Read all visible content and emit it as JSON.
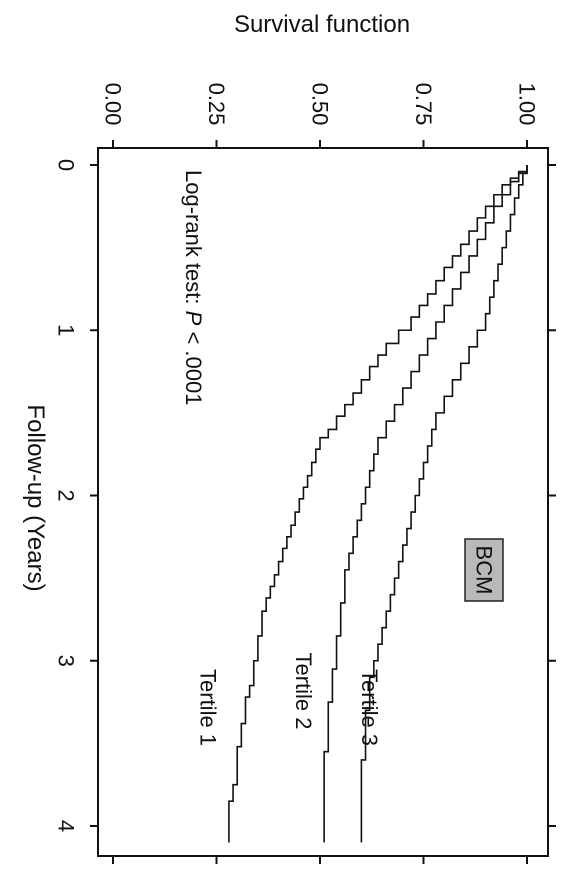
{
  "chart_data": {
    "type": "line",
    "step": true,
    "orientation": "rotated-90-clockwise",
    "xlabel": "Follow-up (Years)",
    "ylabel": "Survival function",
    "xlim": [
      0,
      4.2
    ],
    "ylim": [
      0,
      1
    ],
    "x_ticks": [
      "0",
      "1",
      "2",
      "3",
      "4"
    ],
    "y_ticks": [
      "0.00",
      "0.25",
      "0.50",
      "0.75",
      "1.00"
    ],
    "badge": "BCM",
    "annotation": {
      "prefix": "Log-rank test: ",
      "italic": "P",
      "suffix": " < .0001"
    },
    "series": [
      {
        "name": "Tertile 1",
        "color": "#111111",
        "x": [
          0,
          0.04,
          0.08,
          0.12,
          0.18,
          0.25,
          0.32,
          0.4,
          0.48,
          0.55,
          0.62,
          0.7,
          0.78,
          0.85,
          0.92,
          1.0,
          1.08,
          1.15,
          1.22,
          1.3,
          1.38,
          1.45,
          1.52,
          1.6,
          1.65,
          1.72,
          1.8,
          1.88,
          1.95,
          2.02,
          2.1,
          2.18,
          2.25,
          2.32,
          2.4,
          2.48,
          2.55,
          2.62,
          2.7,
          2.78,
          2.85,
          2.92,
          3.0,
          3.08,
          3.15,
          3.22,
          3.3,
          3.38,
          3.45,
          3.52,
          3.6,
          3.68,
          3.75,
          3.85,
          4.1
        ],
        "y": [
          1.0,
          0.98,
          0.96,
          0.94,
          0.92,
          0.9,
          0.88,
          0.86,
          0.84,
          0.82,
          0.8,
          0.78,
          0.76,
          0.74,
          0.72,
          0.69,
          0.66,
          0.64,
          0.62,
          0.6,
          0.58,
          0.56,
          0.54,
          0.52,
          0.5,
          0.49,
          0.48,
          0.47,
          0.46,
          0.45,
          0.44,
          0.43,
          0.42,
          0.41,
          0.4,
          0.39,
          0.38,
          0.37,
          0.36,
          0.36,
          0.35,
          0.35,
          0.34,
          0.34,
          0.33,
          0.32,
          0.32,
          0.31,
          0.31,
          0.3,
          0.3,
          0.3,
          0.29,
          0.28,
          0.28
        ]
      },
      {
        "name": "Tertile 2",
        "color": "#111111",
        "x": [
          0,
          0.05,
          0.1,
          0.18,
          0.25,
          0.35,
          0.45,
          0.55,
          0.65,
          0.75,
          0.85,
          0.95,
          1.05,
          1.15,
          1.25,
          1.35,
          1.45,
          1.55,
          1.65,
          1.75,
          1.85,
          1.95,
          2.05,
          2.15,
          2.25,
          2.35,
          2.45,
          2.55,
          2.65,
          2.75,
          2.85,
          2.95,
          3.05,
          3.15,
          3.25,
          3.35,
          3.45,
          3.55,
          3.65,
          3.75,
          3.85,
          4.1
        ],
        "y": [
          1.0,
          0.98,
          0.96,
          0.94,
          0.92,
          0.9,
          0.88,
          0.86,
          0.84,
          0.82,
          0.8,
          0.78,
          0.76,
          0.74,
          0.72,
          0.7,
          0.68,
          0.66,
          0.64,
          0.63,
          0.62,
          0.61,
          0.6,
          0.59,
          0.58,
          0.57,
          0.56,
          0.56,
          0.55,
          0.55,
          0.54,
          0.54,
          0.53,
          0.53,
          0.52,
          0.52,
          0.52,
          0.51,
          0.51,
          0.51,
          0.51,
          0.51
        ]
      },
      {
        "name": "Tertile 3",
        "color": "#111111",
        "x": [
          0,
          0.05,
          0.12,
          0.2,
          0.3,
          0.4,
          0.5,
          0.6,
          0.7,
          0.8,
          0.9,
          1.0,
          1.1,
          1.2,
          1.3,
          1.4,
          1.5,
          1.6,
          1.7,
          1.8,
          1.9,
          2.0,
          2.1,
          2.2,
          2.3,
          2.4,
          2.5,
          2.6,
          2.7,
          2.8,
          2.9,
          3.0,
          3.1,
          3.2,
          3.3,
          3.4,
          3.5,
          3.6,
          3.7,
          3.8,
          4.1
        ],
        "y": [
          1.0,
          0.99,
          0.98,
          0.97,
          0.96,
          0.95,
          0.94,
          0.93,
          0.92,
          0.91,
          0.9,
          0.88,
          0.86,
          0.84,
          0.82,
          0.8,
          0.78,
          0.77,
          0.76,
          0.75,
          0.74,
          0.73,
          0.72,
          0.71,
          0.7,
          0.69,
          0.68,
          0.67,
          0.66,
          0.65,
          0.64,
          0.63,
          0.62,
          0.62,
          0.61,
          0.61,
          0.61,
          0.6,
          0.6,
          0.6,
          0.6
        ]
      }
    ]
  }
}
